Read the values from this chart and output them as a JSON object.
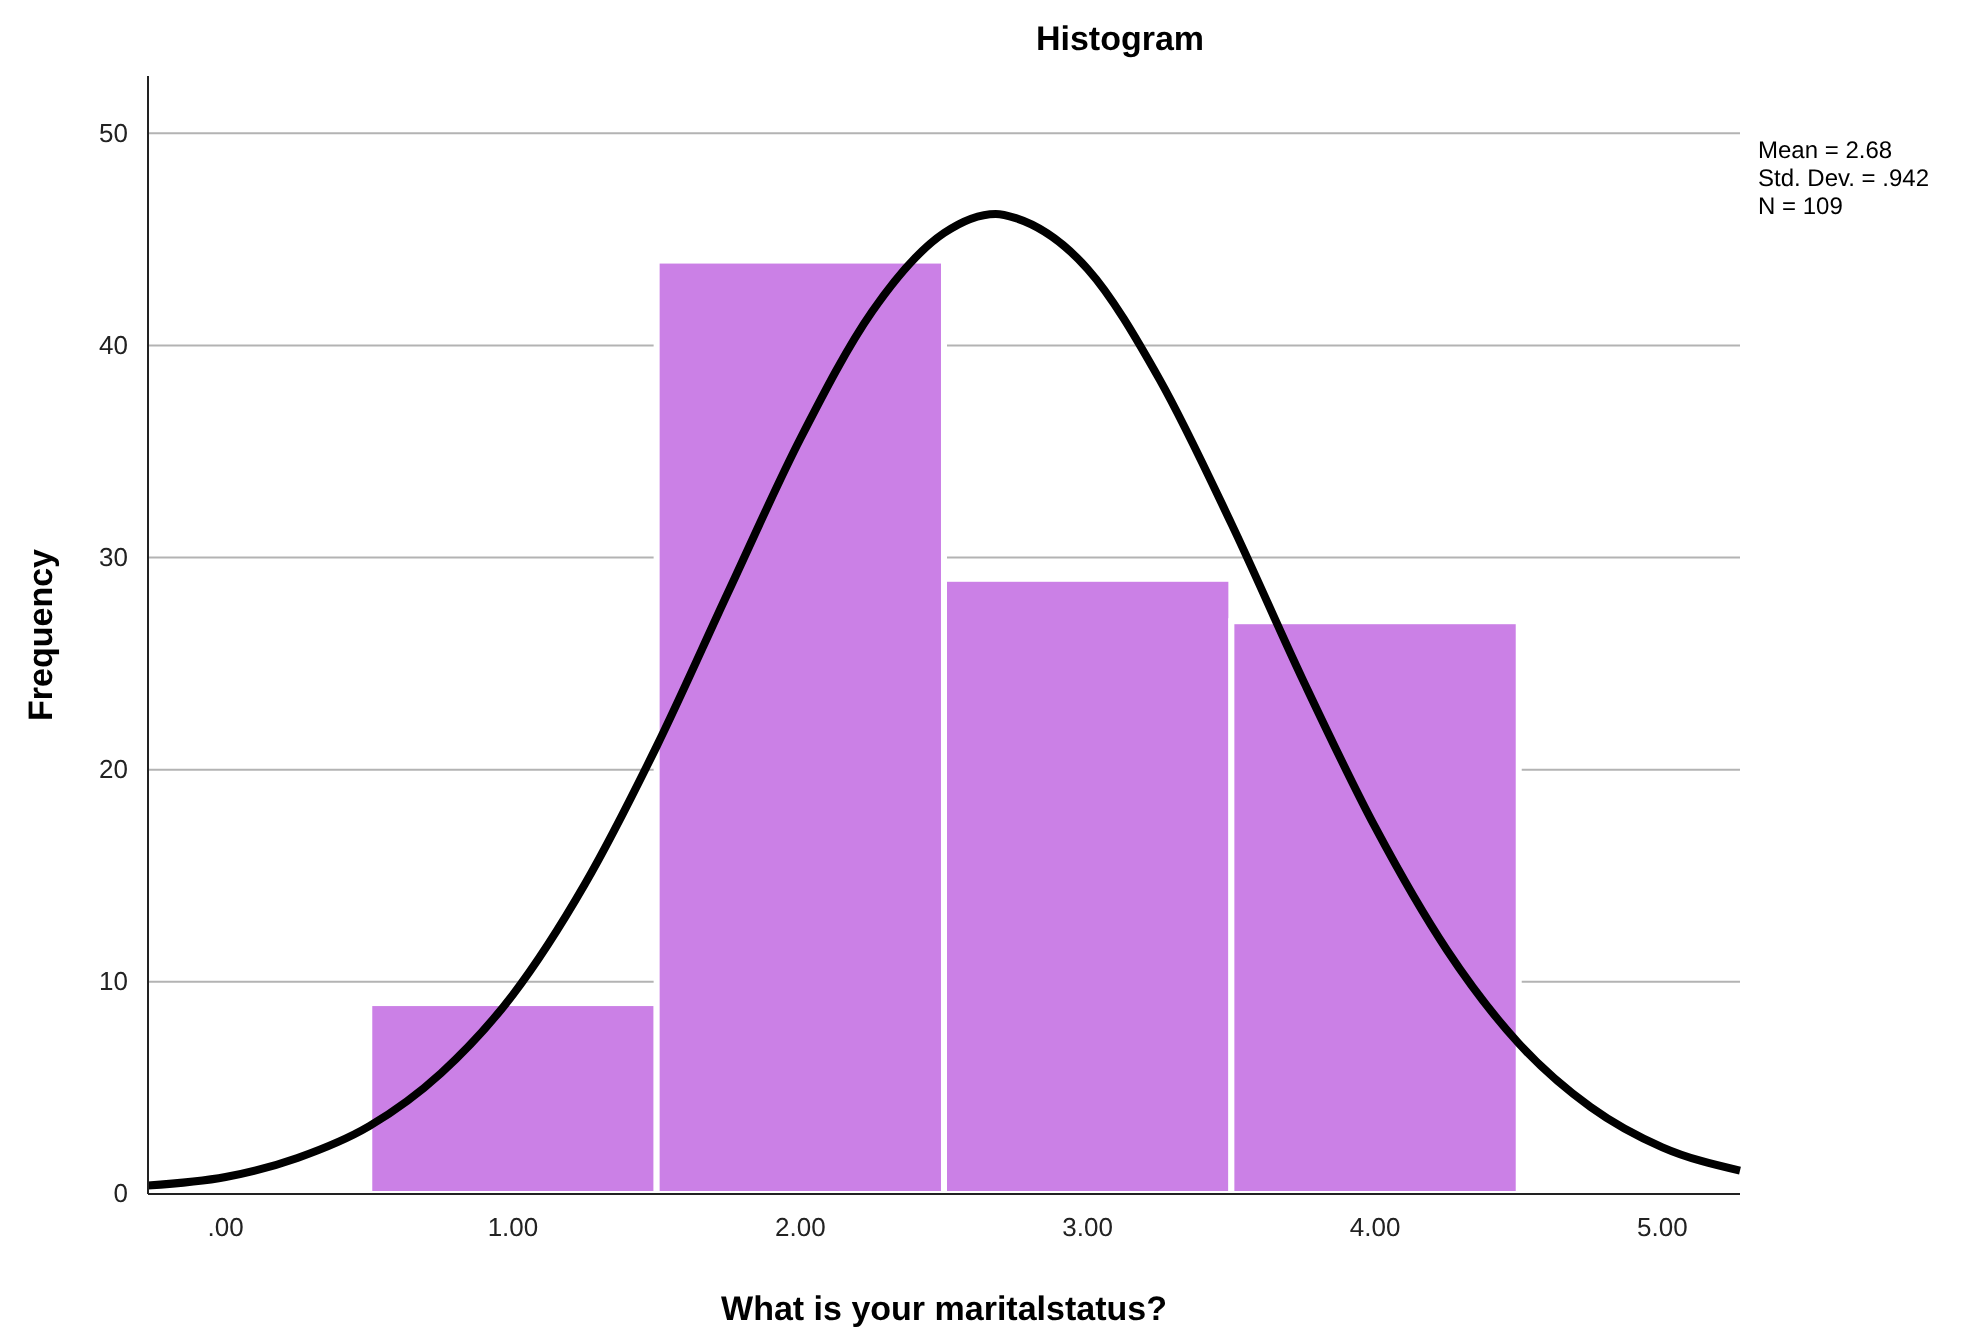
{
  "chart_data": {
    "type": "histogram",
    "title": "Histogram",
    "xlabel": "What is your maritalstatus?",
    "ylabel": "Frequency",
    "bins": [
      0.5,
      1.5,
      2.5,
      3.5,
      4.5
    ],
    "values": [
      9,
      44,
      29,
      27
    ],
    "color": "#cb80e6",
    "series": [
      {
        "type": "line",
        "color": "#000000",
        "x": [
          -0.27,
          0,
          0.25,
          0.5,
          0.75,
          1,
          1.25,
          1.5,
          1.75,
          2,
          2.25,
          2.5,
          2.68,
          2.75,
          3,
          3.25,
          3.5,
          3.75,
          4,
          4.25,
          4.5,
          4.75,
          5,
          5.27
        ],
        "values": [
          0.4,
          0.8,
          1.7,
          3.2,
          5.7,
          9.4,
          14.6,
          21.1,
          28.4,
          35.6,
          41.6,
          45.3,
          46.2,
          46,
          43.6,
          38.4,
          31.6,
          24.2,
          17.3,
          11.5,
          7.1,
          4.1,
          2.2,
          1.1
        ]
      }
    ],
    "xlim": [
      -0.27,
      5.27
    ],
    "xticks": [
      {
        "value": 0,
        "label": ".00"
      },
      {
        "value": 1,
        "label": "1.00"
      },
      {
        "value": 2,
        "label": "2.00"
      },
      {
        "value": 3,
        "label": "3.00"
      },
      {
        "value": 4,
        "label": "4.00"
      },
      {
        "value": 5,
        "label": "5.00"
      }
    ],
    "ylim": [
      0,
      52.7
    ],
    "yticks": [
      0,
      10,
      20,
      30,
      40,
      50
    ],
    "grid": "y",
    "annotations": [
      "Mean = 2.68",
      "Std. Dev. = .942",
      "N = 109"
    ]
  }
}
